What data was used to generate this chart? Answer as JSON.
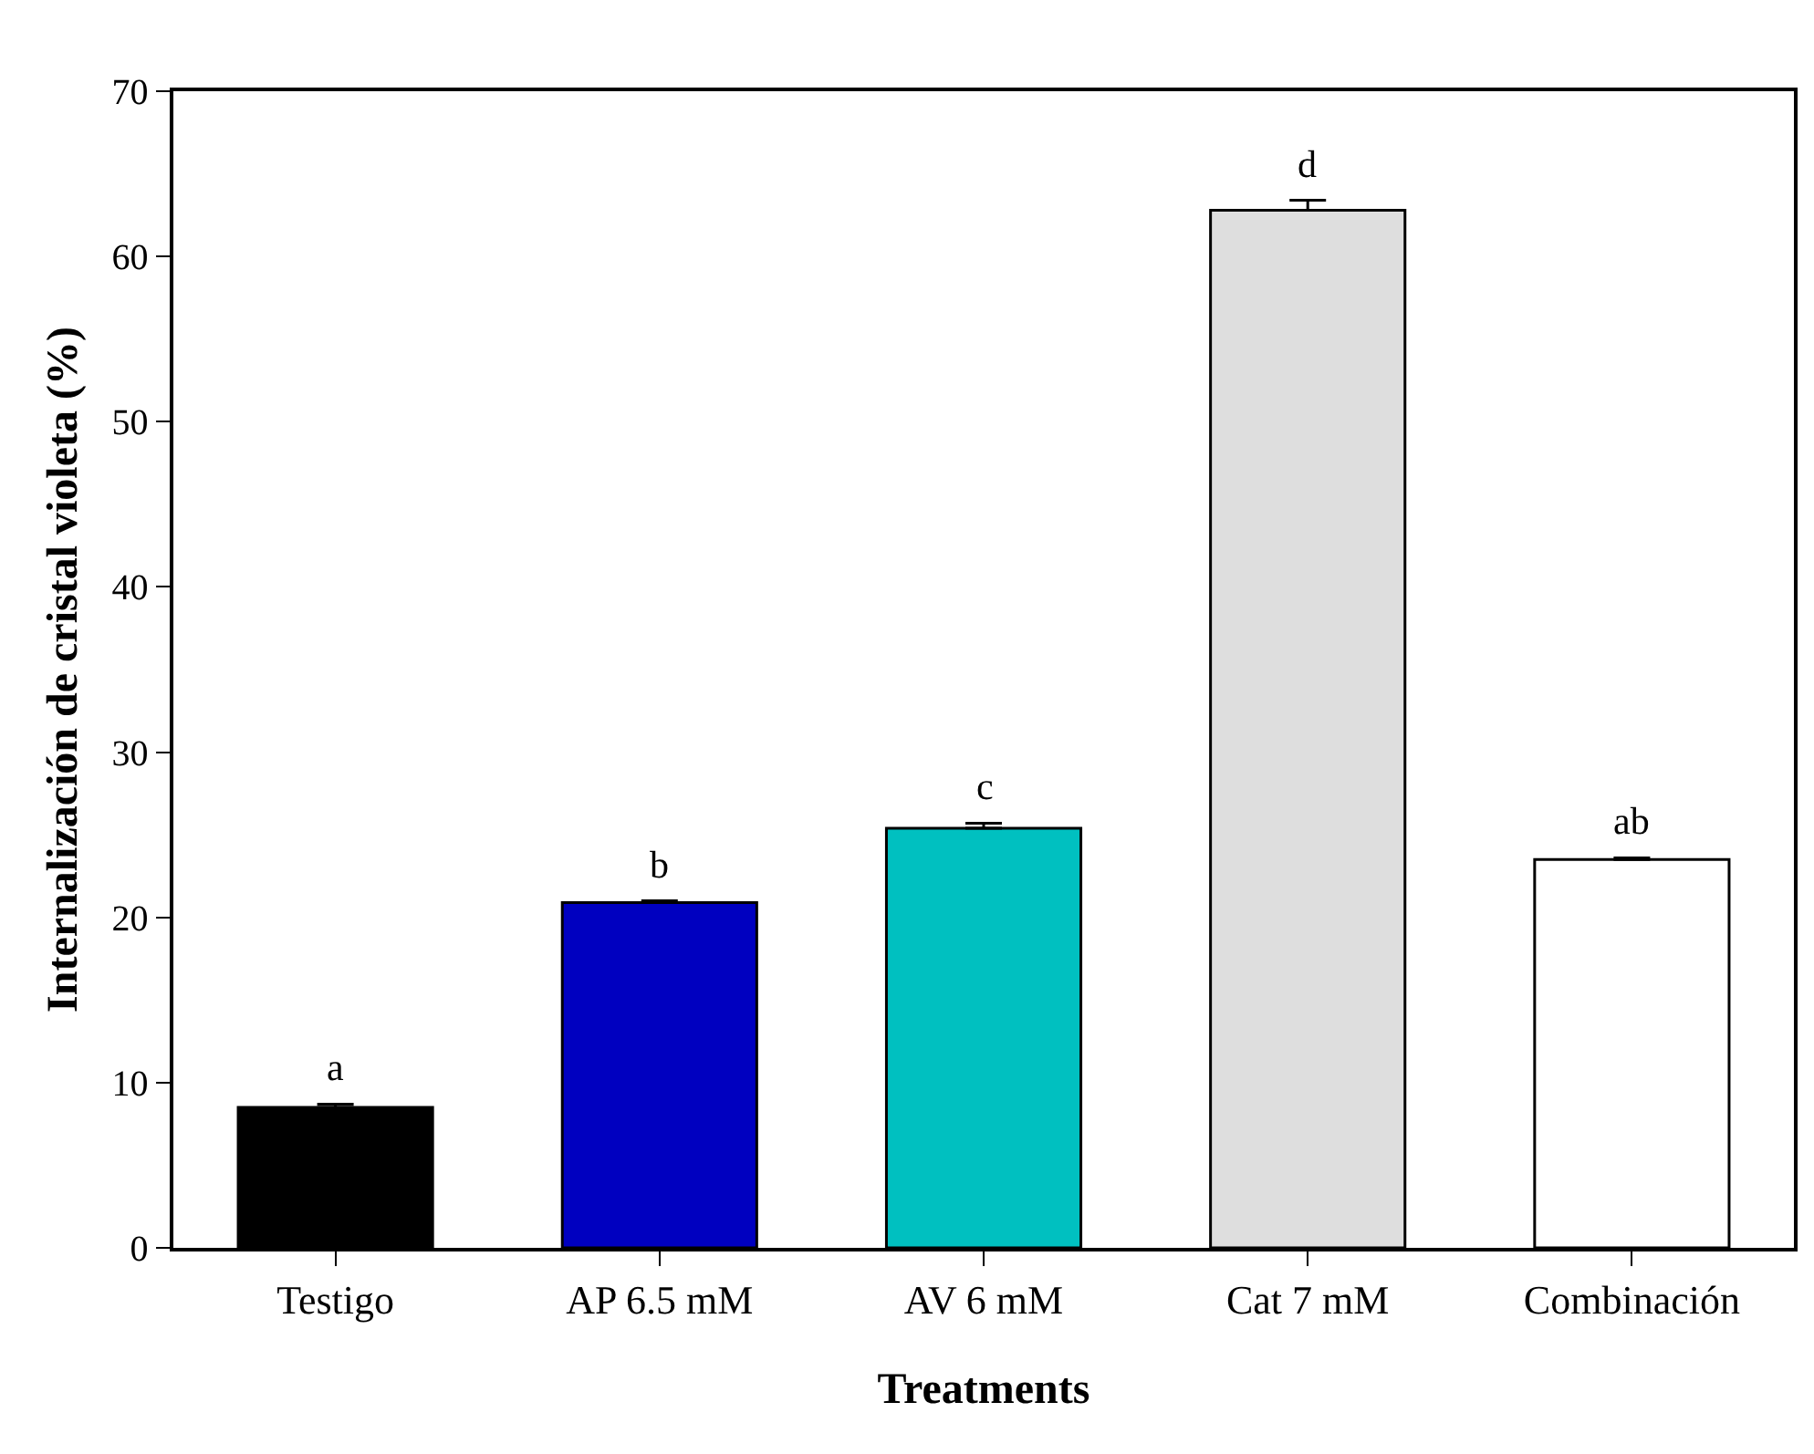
{
  "chart_data": {
    "type": "bar",
    "xlabel": "Treatments",
    "ylabel": "Internalización de cristal violeta (%)",
    "categories": [
      "Testigo",
      "AP 6.5 mM",
      "AV 6 mM",
      "Cat 7 mM",
      "Combinación"
    ],
    "values": [
      8.5,
      20.9,
      25.4,
      62.8,
      23.5
    ],
    "errors": [
      0.2,
      0.1,
      0.3,
      0.6,
      0.1
    ],
    "colors": [
      "#000000",
      "#0000c0",
      "#00c0c0",
      "#dedede",
      "#ffffff"
    ],
    "ylim": [
      0,
      70
    ],
    "yticks": [
      0,
      10,
      20,
      30,
      40,
      50,
      60,
      70
    ],
    "annotations": [
      {
        "text": "a",
        "x": "Testigo",
        "y": 8.7
      },
      {
        "text": "b",
        "x": "AP 6.5 mM",
        "y": 21.0
      },
      {
        "text": "c",
        "x": "AV 6 mM",
        "y": 25.7
      },
      {
        "text": "d",
        "x": "Cat 7 mM",
        "y": 63.4
      },
      {
        "text": "ab",
        "x": "Combinación",
        "y": 23.6
      }
    ]
  }
}
